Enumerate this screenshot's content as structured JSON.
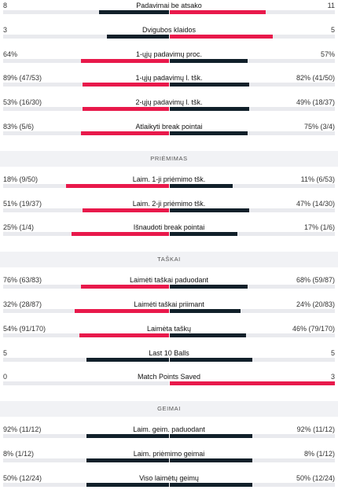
{
  "colors": {
    "left": "#11202a",
    "right": "#e8194b",
    "track": "#e9eaee"
  },
  "sections": [
    {
      "title": "",
      "rows": [
        {
          "label": "Padavimai be atsako",
          "left": "8",
          "right": "11",
          "left_share": 0.42,
          "right_share": 0.58,
          "left_color": "left",
          "right_color": "right"
        },
        {
          "label": "Dvigubos klaidos",
          "left": "3",
          "right": "5",
          "left_share": 0.375,
          "right_share": 0.625,
          "left_color": "left",
          "right_color": "right"
        },
        {
          "label": "1-ųjų padavimų proc.",
          "left": "64%",
          "right": "57%",
          "left_share": 0.53,
          "right_share": 0.47,
          "left_color": "right",
          "right_color": "left"
        },
        {
          "label": "1-ųjų padavimų l. tšk.",
          "left": "89% (47/53)",
          "right": "82% (41/50)",
          "left_share": 0.52,
          "right_share": 0.48,
          "left_color": "right",
          "right_color": "left"
        },
        {
          "label": "2-ųjų padavimų l. tšk.",
          "left": "53% (16/30)",
          "right": "49% (18/37)",
          "left_share": 0.52,
          "right_share": 0.48,
          "left_color": "right",
          "right_color": "left"
        },
        {
          "label": "Atlaikyti break pointai",
          "left": "83% (5/6)",
          "right": "75% (3/4)",
          "left_share": 0.53,
          "right_share": 0.47,
          "left_color": "right",
          "right_color": "left"
        }
      ]
    },
    {
      "title": "PRIĖMIMAS",
      "rows": [
        {
          "label": "Laim. 1-ji priėmimo tšk.",
          "left": "18% (9/50)",
          "right": "11% (6/53)",
          "left_share": 0.62,
          "right_share": 0.38,
          "left_color": "right",
          "right_color": "left"
        },
        {
          "label": "Laim. 2-ji priėmimo tšk.",
          "left": "51% (19/37)",
          "right": "47% (14/30)",
          "left_share": 0.52,
          "right_share": 0.48,
          "left_color": "right",
          "right_color": "left"
        },
        {
          "label": "Išnaudoti break pointai",
          "left": "25% (1/4)",
          "right": "17% (1/6)",
          "left_share": 0.59,
          "right_share": 0.41,
          "left_color": "right",
          "right_color": "left"
        }
      ]
    },
    {
      "title": "TAŠKAI",
      "rows": [
        {
          "label": "Laimėti taškai paduodant",
          "left": "76% (63/83)",
          "right": "68% (59/87)",
          "left_share": 0.53,
          "right_share": 0.47,
          "left_color": "right",
          "right_color": "left"
        },
        {
          "label": "Laimėti taškai priimant",
          "left": "32% (28/87)",
          "right": "24% (20/83)",
          "left_share": 0.57,
          "right_share": 0.43,
          "left_color": "right",
          "right_color": "left"
        },
        {
          "label": "Laimėta taškų",
          "left": "54% (91/170)",
          "right": "46% (79/170)",
          "left_share": 0.54,
          "right_share": 0.46,
          "left_color": "right",
          "right_color": "left"
        },
        {
          "label": "Last 10 Balls",
          "left": "5",
          "right": "5",
          "left_share": 0.5,
          "right_share": 0.5,
          "left_color": "left",
          "right_color": "left"
        },
        {
          "label": "Match Points Saved",
          "left": "0",
          "right": "3",
          "left_share": 0,
          "right_share": 1,
          "left_color": "left",
          "right_color": "right"
        }
      ]
    },
    {
      "title": "GEIMAI",
      "rows": [
        {
          "label": "Laim. geim. paduodant",
          "left": "92% (11/12)",
          "right": "92% (11/12)",
          "left_share": 0.5,
          "right_share": 0.5,
          "left_color": "left",
          "right_color": "left"
        },
        {
          "label": "Laim. priėmimo geimai",
          "left": "8% (1/12)",
          "right": "8% (1/12)",
          "left_share": 0.5,
          "right_share": 0.5,
          "left_color": "left",
          "right_color": "left"
        },
        {
          "label": "Viso laimėtų geimų",
          "left": "50% (12/24)",
          "right": "50% (12/24)",
          "left_share": 0.5,
          "right_share": 0.5,
          "left_color": "left",
          "right_color": "left"
        }
      ]
    }
  ]
}
